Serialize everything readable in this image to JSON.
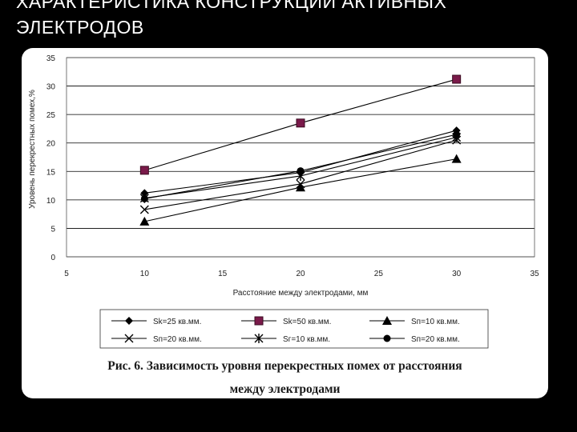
{
  "slide": {
    "title_line1": "ХАРАКТЕРИСТИКА КОНСТРУКЦИЙ АКТИВНЫХ",
    "title_line2": "ЭЛЕКТРОДОВ"
  },
  "caption": {
    "line1": "Рис. 6. Зависимость уровня перекрестных помех от расстояния",
    "line2": "между электродами"
  },
  "chart_data": {
    "type": "line",
    "xlabel": "Расстояние между электродами, мм",
    "ylabel": "Уровень перекрестных помех,%",
    "xlim": [
      5,
      35
    ],
    "ylim": [
      0,
      35
    ],
    "xticks": [
      5,
      10,
      15,
      20,
      25,
      30,
      35
    ],
    "yticks": [
      0,
      5,
      10,
      15,
      20,
      25,
      30,
      35
    ],
    "grid": "horizontal",
    "legend_position": "bottom",
    "x": [
      10,
      20,
      30
    ],
    "series": [
      {
        "name": "Sk=25 кв.мм.",
        "marker": "diamond-small",
        "values": [
          11.2,
          14.8,
          22.2
        ]
      },
      {
        "name": "Sk=50 кв.мм.",
        "marker": "square",
        "values": [
          15.2,
          23.5,
          31.2
        ]
      },
      {
        "name": "Sп=10 кв.мм.",
        "marker": "triangle",
        "values": [
          6.2,
          12.2,
          17.2
        ]
      },
      {
        "name": "Sп=20 кв.мм.",
        "marker": "x",
        "values": [
          8.3,
          12.8,
          20.5
        ]
      },
      {
        "name": "Sг=10 кв.мм.",
        "marker": "asterisk",
        "values": [
          10.3,
          14.2,
          21.0
        ]
      },
      {
        "name": "Sп=20 кв.мм.",
        "marker": "circle",
        "values": [
          10.2,
          15.1,
          21.5
        ]
      }
    ]
  }
}
